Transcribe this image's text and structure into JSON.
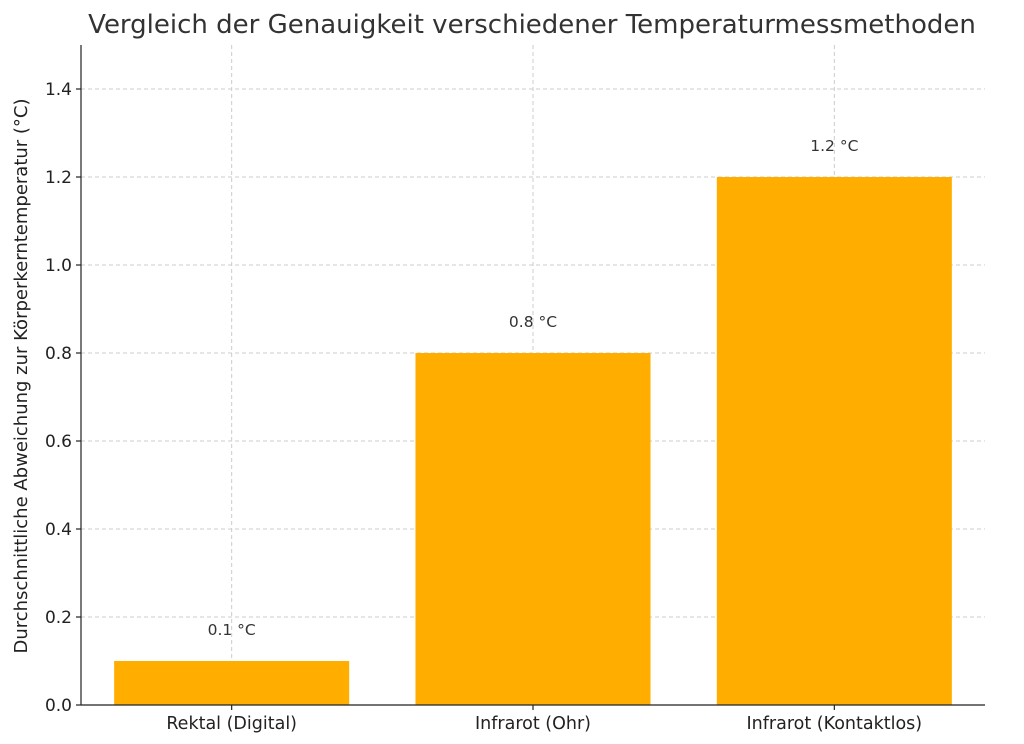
{
  "chart_data": {
    "type": "bar",
    "title": "Vergleich der Genauigkeit verschiedener Temperaturmessmethoden",
    "xlabel": "",
    "ylabel": "Durchschnittliche Abweichung zur Körperkerntemperatur (°C)",
    "categories": [
      "Rektal (Digital)",
      "Infrarot (Ohr)",
      "Infrarot (Kontaktlos)"
    ],
    "values": [
      0.1,
      0.8,
      1.2
    ],
    "data_labels": [
      "0.1 °C",
      "0.8 °C",
      "1.2 °C"
    ],
    "ylim": [
      0,
      1.5
    ],
    "yticks": [
      0.0,
      0.2,
      0.4,
      0.6,
      0.8,
      1.0,
      1.2,
      1.4
    ],
    "ytick_labels": [
      "0.0",
      "0.2",
      "0.4",
      "0.6",
      "0.8",
      "1.0",
      "1.2",
      "1.4"
    ],
    "grid": true,
    "colors": {
      "bar": "#FFAE00"
    }
  }
}
